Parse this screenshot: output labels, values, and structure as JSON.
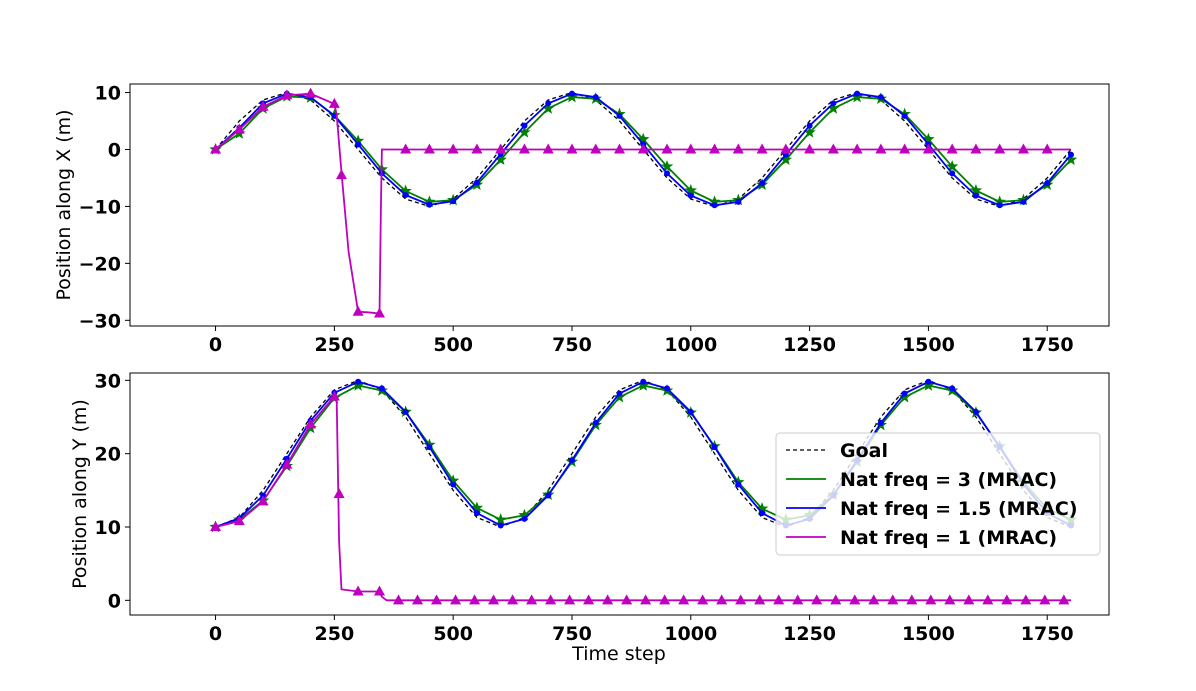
{
  "chart_data": [
    {
      "type": "line",
      "ylabel": "Position along X (m)",
      "xlabel": "",
      "xlim": [
        -180,
        1880
      ],
      "ylim": [
        -31,
        11.5
      ],
      "xticks": [
        0,
        250,
        500,
        750,
        1000,
        1250,
        1500,
        1750
      ],
      "yticks": [
        10,
        0,
        -10,
        -20,
        -30
      ],
      "series": [
        {
          "name": "Goal",
          "color": "#000000",
          "style": "dashed",
          "marker": "none",
          "x": [
            0,
            50,
            100,
            150,
            200,
            250,
            300,
            350,
            400,
            450,
            500,
            550,
            600,
            650,
            700,
            750,
            800,
            850,
            900,
            950,
            1000,
            1050,
            1100,
            1150,
            1200,
            1250,
            1300,
            1350,
            1400,
            1450,
            1500,
            1550,
            1600,
            1650,
            1700,
            1750,
            1800
          ],
          "y": [
            0,
            5.0,
            8.7,
            10.0,
            8.7,
            5.0,
            0,
            -5.0,
            -8.7,
            -10.0,
            -8.7,
            -5.0,
            0,
            5.0,
            8.7,
            10.0,
            8.7,
            5.0,
            0,
            -5.0,
            -8.7,
            -10.0,
            -8.7,
            -5.0,
            0,
            5.0,
            8.7,
            10.0,
            8.7,
            5.0,
            0,
            -5.0,
            -8.7,
            -10.0,
            -8.7,
            -5.0,
            0
          ]
        },
        {
          "name": "Nat freq = 3 (MRAC)",
          "color": "#008000",
          "style": "solid",
          "marker": "star",
          "x": [
            0,
            50,
            100,
            150,
            200,
            250,
            300,
            350,
            400,
            450,
            500,
            550,
            600,
            650,
            700,
            750,
            800,
            850,
            900,
            950,
            1000,
            1050,
            1100,
            1150,
            1200,
            1250,
            1300,
            1350,
            1400,
            1450,
            1500,
            1550,
            1600,
            1650,
            1700,
            1750,
            1800
          ],
          "y": [
            0,
            2.8,
            7.2,
            9.3,
            9.1,
            6.0,
            1.5,
            -3.5,
            -7.3,
            -9.2,
            -8.9,
            -6.2,
            -1.8,
            3.0,
            7.2,
            9.2,
            8.9,
            6.2,
            1.8,
            -3.0,
            -7.2,
            -9.2,
            -8.9,
            -6.2,
            -1.8,
            3.0,
            7.2,
            9.2,
            8.9,
            6.2,
            1.8,
            -3.0,
            -7.2,
            -9.2,
            -8.9,
            -6.2,
            -1.8
          ]
        },
        {
          "name": "Nat freq = 1.5 (MRAC)",
          "color": "#0000ff",
          "style": "solid",
          "marker": "circle",
          "x": [
            0,
            50,
            100,
            150,
            200,
            250,
            300,
            350,
            400,
            450,
            500,
            550,
            600,
            650,
            700,
            750,
            800,
            850,
            900,
            950,
            1000,
            1050,
            1100,
            1150,
            1200,
            1250,
            1300,
            1350,
            1400,
            1450,
            1500,
            1550,
            1600,
            1650,
            1700,
            1750,
            1800
          ],
          "y": [
            0,
            3.8,
            8.1,
            9.8,
            9.2,
            5.9,
            0.9,
            -4.2,
            -8.0,
            -9.7,
            -9.1,
            -5.8,
            -0.8,
            4.2,
            8.1,
            9.8,
            9.2,
            5.9,
            0.9,
            -4.2,
            -8.1,
            -9.8,
            -9.2,
            -5.9,
            -0.9,
            4.2,
            8.1,
            9.8,
            9.2,
            5.9,
            0.9,
            -4.2,
            -8.1,
            -9.8,
            -9.2,
            -5.9,
            -0.9
          ]
        },
        {
          "name": "Nat freq = 1 (MRAC)",
          "color": "#bf00bf",
          "style": "solid",
          "marker": "triangle",
          "x": [
            0,
            50,
            100,
            150,
            200,
            250,
            255,
            265,
            280,
            300,
            320,
            345,
            348,
            350,
            400,
            450,
            500,
            550,
            600,
            650,
            700,
            750,
            800,
            850,
            900,
            950,
            1000,
            1050,
            1100,
            1150,
            1200,
            1250,
            1300,
            1350,
            1400,
            1450,
            1500,
            1550,
            1600,
            1650,
            1700,
            1750,
            1800
          ],
          "y": [
            0,
            3.5,
            7.5,
            9.5,
            9.8,
            8.0,
            6.0,
            -4.0,
            -18.0,
            -28.5,
            -28.6,
            -28.8,
            -10.0,
            0,
            0,
            0,
            0,
            0,
            0,
            0,
            0,
            0,
            0,
            0,
            0,
            0,
            0,
            0,
            0,
            0,
            0,
            0,
            0,
            0,
            0,
            0,
            0,
            0,
            0,
            0,
            0,
            0,
            0
          ],
          "marker_x": [
            0,
            50,
            100,
            150,
            200,
            250,
            265,
            300,
            345,
            400,
            450,
            500,
            550,
            600,
            650,
            700,
            750,
            800,
            850,
            900,
            950,
            1000,
            1050,
            1100,
            1150,
            1200,
            1250,
            1300,
            1350,
            1400,
            1450,
            1500,
            1550,
            1600,
            1650,
            1700,
            1750
          ],
          "marker_y": [
            0,
            3.5,
            7.5,
            9.5,
            9.8,
            8.0,
            -4.5,
            -28.5,
            -28.8,
            0,
            0,
            0,
            0,
            0,
            0,
            0,
            0,
            0,
            0,
            0,
            0,
            0,
            0,
            0,
            0,
            0,
            0,
            0,
            0,
            0,
            0,
            0,
            0,
            0,
            0,
            0,
            0
          ]
        }
      ]
    },
    {
      "type": "line",
      "ylabel": "Position along Y (m)",
      "xlabel": "Time step",
      "xlim": [
        -180,
        1880
      ],
      "ylim": [
        -2,
        31
      ],
      "xticks": [
        0,
        250,
        500,
        750,
        1000,
        1250,
        1500,
        1750
      ],
      "yticks": [
        30,
        20,
        10,
        0
      ],
      "legend": {
        "position": "center-right"
      },
      "series": [
        {
          "name": "Goal",
          "color": "#000000",
          "style": "dashed",
          "marker": "none",
          "x": [
            0,
            50,
            100,
            150,
            200,
            250,
            300,
            350,
            400,
            450,
            500,
            550,
            600,
            650,
            700,
            750,
            800,
            850,
            900,
            950,
            1000,
            1050,
            1100,
            1150,
            1200,
            1250,
            1300,
            1350,
            1400,
            1450,
            1500,
            1550,
            1600,
            1650,
            1700,
            1750,
            1800
          ],
          "y": [
            10,
            11.3,
            15.0,
            20.0,
            25.0,
            28.7,
            30.0,
            28.7,
            25.0,
            20.0,
            15.0,
            11.3,
            10.0,
            11.3,
            15.0,
            20.0,
            25.0,
            28.7,
            30.0,
            28.7,
            25.0,
            20.0,
            15.0,
            11.3,
            10.0,
            11.3,
            15.0,
            20.0,
            25.0,
            28.7,
            30.0,
            28.7,
            25.0,
            20.0,
            15.0,
            11.3,
            10.0
          ]
        },
        {
          "name": "Nat freq = 3 (MRAC)",
          "color": "#008000",
          "style": "solid",
          "marker": "star",
          "x": [
            0,
            50,
            100,
            150,
            200,
            250,
            300,
            350,
            400,
            450,
            500,
            550,
            600,
            650,
            700,
            750,
            800,
            850,
            900,
            950,
            1000,
            1050,
            1100,
            1150,
            1200,
            1250,
            1300,
            1350,
            1400,
            1450,
            1500,
            1550,
            1600,
            1650,
            1700,
            1750,
            1800
          ],
          "y": [
            10,
            11.0,
            13.6,
            18.3,
            23.5,
            27.6,
            29.3,
            28.6,
            25.7,
            21.2,
            16.3,
            12.6,
            11.0,
            11.6,
            14.4,
            18.9,
            23.9,
            27.7,
            29.3,
            28.6,
            25.6,
            21.0,
            16.1,
            12.5,
            11.0,
            11.6,
            14.4,
            18.9,
            23.9,
            27.7,
            29.3,
            28.6,
            25.6,
            21.0,
            16.1,
            12.5,
            11.0
          ]
        },
        {
          "name": "Nat freq = 1.5 (MRAC)",
          "color": "#0000ff",
          "style": "solid",
          "marker": "circle",
          "x": [
            0,
            50,
            100,
            150,
            200,
            250,
            300,
            350,
            400,
            450,
            500,
            550,
            600,
            650,
            700,
            750,
            800,
            850,
            900,
            950,
            1000,
            1050,
            1100,
            1150,
            1200,
            1250,
            1300,
            1350,
            1400,
            1450,
            1500,
            1550,
            1600,
            1650,
            1700,
            1750,
            1800
          ],
          "y": [
            10,
            11.2,
            14.3,
            19.3,
            24.5,
            28.3,
            29.8,
            28.9,
            25.7,
            20.9,
            15.8,
            11.9,
            10.2,
            11.1,
            14.3,
            19.1,
            24.2,
            28.2,
            29.8,
            28.9,
            25.7,
            20.9,
            15.8,
            11.9,
            10.2,
            11.1,
            14.3,
            19.1,
            24.2,
            28.2,
            29.8,
            28.9,
            25.7,
            20.9,
            15.8,
            11.9,
            10.2
          ]
        },
        {
          "name": "Nat freq = 1 (MRAC)",
          "color": "#bf00bf",
          "style": "solid",
          "marker": "triangle",
          "x": [
            0,
            50,
            100,
            150,
            200,
            250,
            255,
            260,
            265,
            300,
            345,
            350,
            360,
            400,
            450,
            500,
            550,
            600,
            650,
            700,
            750,
            800,
            850,
            900,
            950,
            1000,
            1050,
            1100,
            1150,
            1200,
            1250,
            1300,
            1350,
            1400,
            1450,
            1500,
            1550,
            1600,
            1650,
            1700,
            1750,
            1800
          ],
          "y": [
            10,
            10.8,
            13.5,
            18.5,
            24.0,
            27.8,
            27.0,
            8.0,
            1.5,
            1.2,
            1.2,
            0.5,
            0,
            0,
            0,
            0,
            0,
            0,
            0,
            0,
            0,
            0,
            0,
            0,
            0,
            0,
            0,
            0,
            0,
            0,
            0,
            0,
            0,
            0,
            0,
            0,
            0,
            0,
            0,
            0,
            0,
            0
          ],
          "marker_x": [
            0,
            50,
            100,
            150,
            200,
            250,
            260,
            300,
            345,
            385,
            425,
            465,
            505,
            545,
            585,
            625,
            665,
            705,
            745,
            785,
            825,
            865,
            905,
            945,
            985,
            1025,
            1065,
            1105,
            1145,
            1185,
            1225,
            1265,
            1305,
            1345,
            1385,
            1425,
            1465,
            1505,
            1545,
            1585,
            1625,
            1665,
            1705,
            1745,
            1785
          ],
          "marker_y": [
            10,
            10.8,
            13.5,
            18.5,
            24.0,
            27.8,
            14.5,
            1.2,
            1.2,
            0,
            0,
            0,
            0,
            0,
            0,
            0,
            0,
            0,
            0,
            0,
            0,
            0,
            0,
            0,
            0,
            0,
            0,
            0,
            0,
            0,
            0,
            0,
            0,
            0,
            0,
            0,
            0,
            0,
            0,
            0,
            0,
            0,
            0,
            0,
            0
          ]
        }
      ]
    }
  ]
}
